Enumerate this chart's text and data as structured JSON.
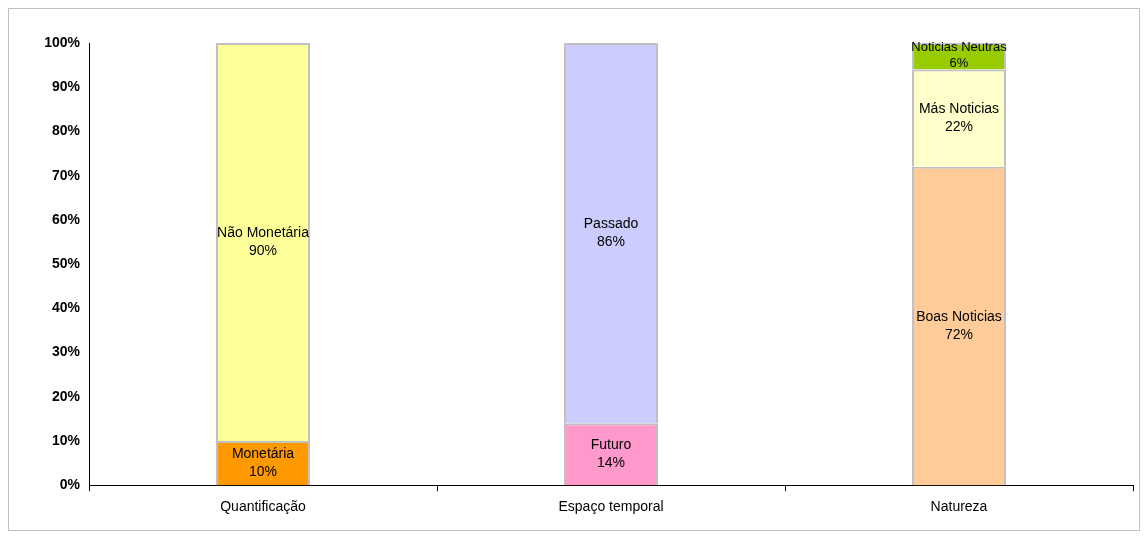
{
  "chart_data": {
    "type": "bar",
    "stacked": true,
    "categories": [
      "Quantificação",
      "Espaço temporal",
      "Natureza"
    ],
    "series": [
      {
        "name": "Monetária",
        "color": "#ff9900",
        "values": [
          10,
          null,
          null
        ],
        "value_labels": [
          "10%",
          null,
          null
        ]
      },
      {
        "name": "Não Monetária",
        "color": "#ffff99",
        "values": [
          90,
          null,
          null
        ],
        "value_labels": [
          "90%",
          null,
          null
        ]
      },
      {
        "name": "Futuro",
        "color": "#ff99cc",
        "values": [
          null,
          14,
          null
        ],
        "value_labels": [
          null,
          "14%",
          null
        ]
      },
      {
        "name": "Passado",
        "color": "#ccccff",
        "values": [
          null,
          86,
          null
        ],
        "value_labels": [
          null,
          "86%",
          null
        ]
      },
      {
        "name": "Boas Noticias",
        "color": "#ffcc99",
        "values": [
          null,
          null,
          72
        ],
        "value_labels": [
          null,
          null,
          "72%"
        ]
      },
      {
        "name": "Más Noticias",
        "color": "#ffffcc",
        "values": [
          null,
          null,
          22
        ],
        "value_labels": [
          null,
          null,
          "22%"
        ]
      },
      {
        "name": "Noticias Neutras",
        "color": "#99cc00",
        "values": [
          null,
          null,
          6
        ],
        "value_labels": [
          null,
          null,
          "6%"
        ]
      }
    ],
    "ylim": [
      0,
      100
    ],
    "yticks": [
      {
        "value": 0,
        "label": "0%"
      },
      {
        "value": 10,
        "label": "10%"
      },
      {
        "value": 20,
        "label": "20%"
      },
      {
        "value": 30,
        "label": "30%"
      },
      {
        "value": 40,
        "label": "40%"
      },
      {
        "value": 50,
        "label": "50%"
      },
      {
        "value": 60,
        "label": "60%"
      },
      {
        "value": 70,
        "label": "70%"
      },
      {
        "value": 80,
        "label": "80%"
      },
      {
        "value": 90,
        "label": "90%"
      },
      {
        "value": 100,
        "label": "100%"
      }
    ],
    "grid": false,
    "legend": false
  }
}
